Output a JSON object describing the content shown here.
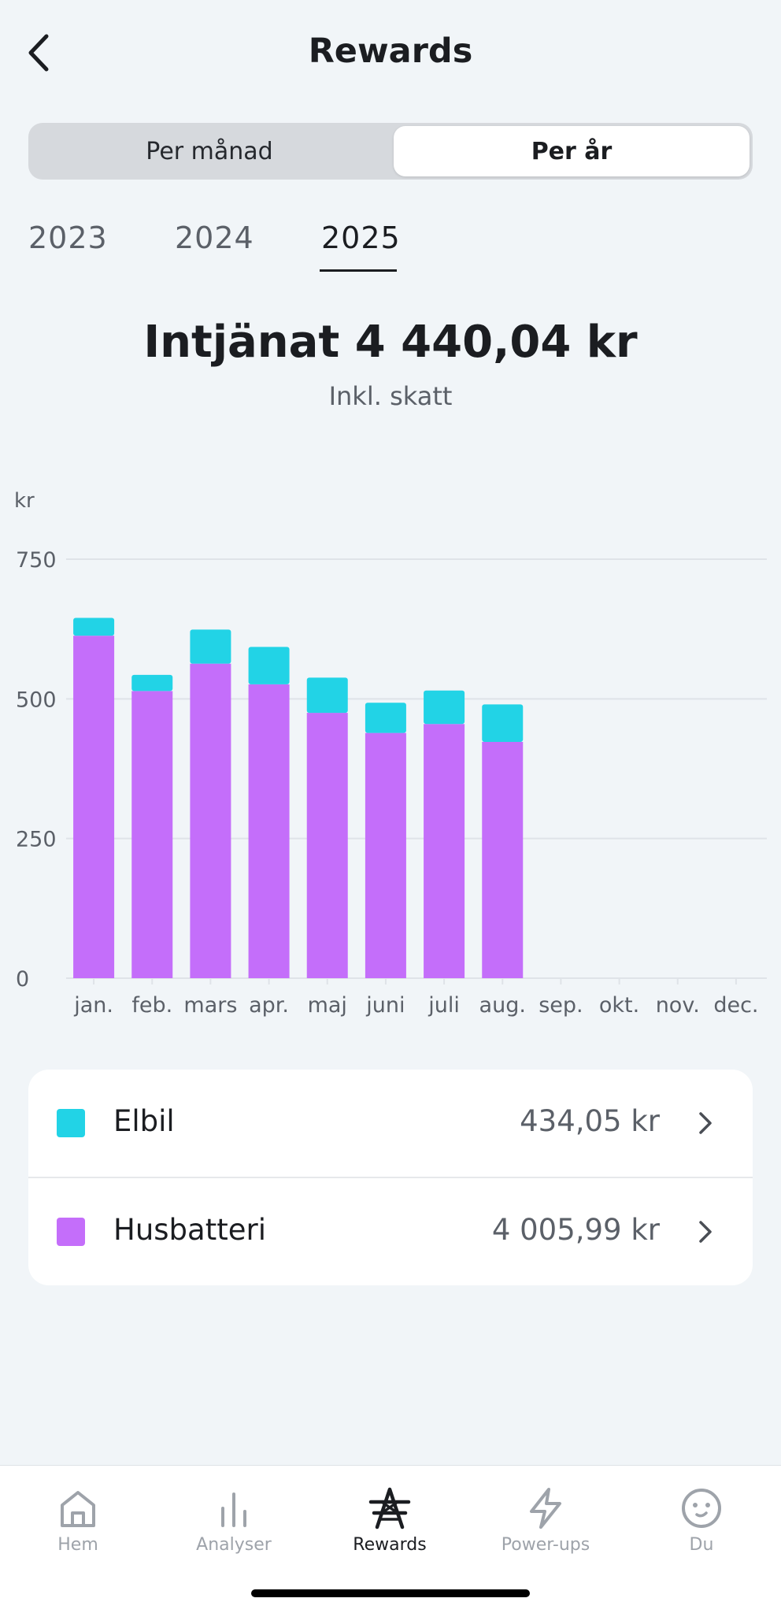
{
  "header": {
    "title": "Rewards"
  },
  "period_toggle": {
    "options": [
      "Per månad",
      "Per år"
    ],
    "selected": "Per år"
  },
  "years": {
    "items": [
      "2023",
      "2024",
      "2025"
    ],
    "selected": "2025"
  },
  "summary": {
    "earned": "Intjänat 4 440,04 kr",
    "subtitle": "Inkl. skatt"
  },
  "colors": {
    "elbil": "#22d3e6",
    "husbatteri": "#c46efa",
    "grid": "#dfe3e8",
    "axis_text": "#5b6068"
  },
  "chart_data": {
    "type": "bar",
    "stacked": true,
    "ylabel": "kr",
    "ylim": [
      0,
      750
    ],
    "yticks": [
      0,
      250,
      500,
      750
    ],
    "categories": [
      "jan.",
      "feb.",
      "mars",
      "apr.",
      "maj",
      "juni",
      "juli",
      "aug.",
      "sep.",
      "okt.",
      "nov.",
      "dec."
    ],
    "series": [
      {
        "name": "Husbatteri",
        "values": [
          613,
          514,
          563,
          526,
          475,
          439,
          455,
          423,
          0,
          0,
          0,
          0
        ]
      },
      {
        "name": "Elbil",
        "values": [
          32,
          29,
          61,
          67,
          63,
          54,
          60,
          67,
          0,
          0,
          0,
          0
        ]
      }
    ],
    "grid": true,
    "legend": "bottom"
  },
  "legend": {
    "items": [
      {
        "label": "Elbil",
        "value": "434,05 kr"
      },
      {
        "label": "Husbatteri",
        "value": "4 005,99 kr"
      }
    ]
  },
  "tabbar": {
    "items": [
      {
        "label": "Hem",
        "icon": "home-icon"
      },
      {
        "label": "Analyser",
        "icon": "bar-chart-icon"
      },
      {
        "label": "Rewards",
        "icon": "rewards-tower-icon"
      },
      {
        "label": "Power-ups",
        "icon": "lightning-icon"
      },
      {
        "label": "Du",
        "icon": "face-icon"
      }
    ],
    "active": "Rewards"
  }
}
